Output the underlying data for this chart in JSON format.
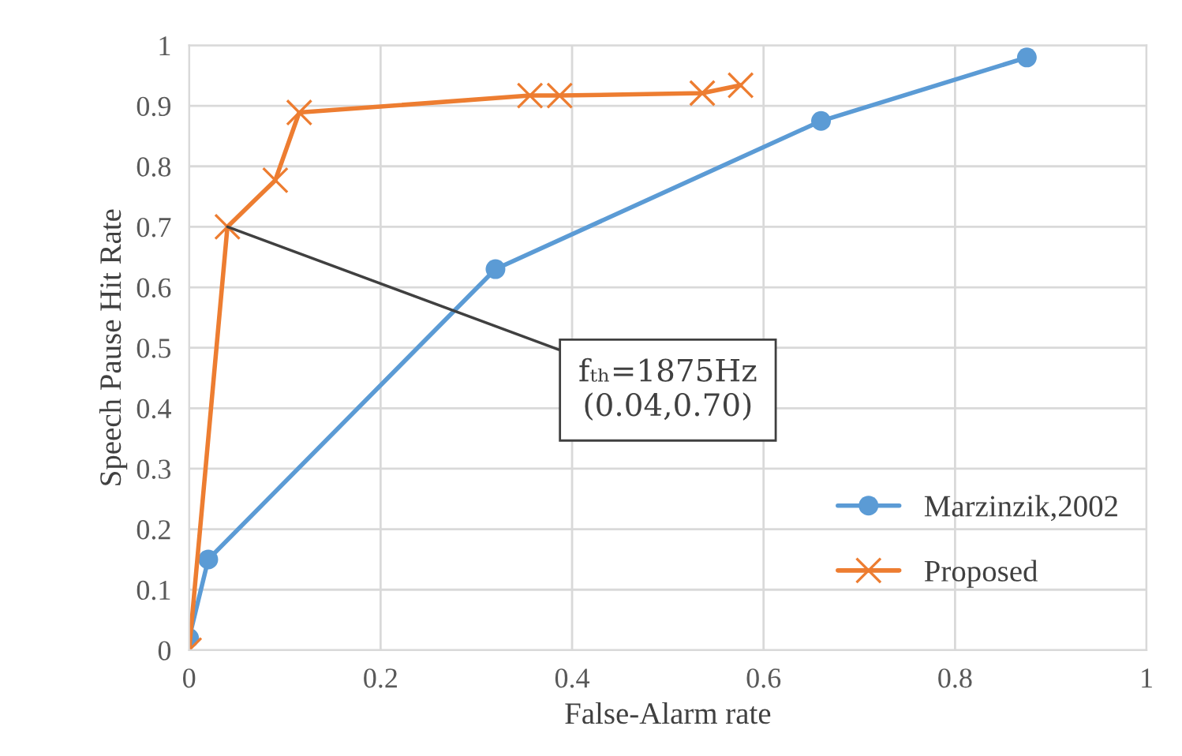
{
  "chart_data": {
    "type": "line",
    "xlabel": "False-Alarm rate",
    "ylabel": "Speech Pause Hit Rate",
    "xlim": [
      0,
      1
    ],
    "xticks": [
      0,
      0.2,
      0.4,
      0.6,
      0.8,
      1
    ],
    "ylim": [
      0,
      1
    ],
    "yticks": [
      0,
      0.1,
      0.2,
      0.3,
      0.4,
      0.5,
      0.6,
      0.7,
      0.8,
      0.9,
      1
    ],
    "grid": true,
    "legend": "right",
    "series": [
      {
        "name": "Marzinzik,2002",
        "color": "#5b9bd5",
        "marker": "circle",
        "x": [
          0,
          0.02,
          0.32,
          0.66,
          0.875
        ],
        "values": [
          0.02,
          0.15,
          0.63,
          0.875,
          0.98
        ]
      },
      {
        "name": "Proposed",
        "color": "#ed7d31",
        "marker": "cross",
        "x": [
          0,
          0.04,
          0.09,
          0.115,
          0.356,
          0.387,
          0.536,
          0.576
        ],
        "values": [
          0,
          0.7,
          0.777,
          0.889,
          0.917,
          0.917,
          0.921,
          0.934
        ]
      }
    ],
    "annotations": [
      {
        "text": "fₜₕ=1875Hz\n(0.04,0.70)",
        "x": 0.04,
        "y": 0.7
      }
    ]
  }
}
